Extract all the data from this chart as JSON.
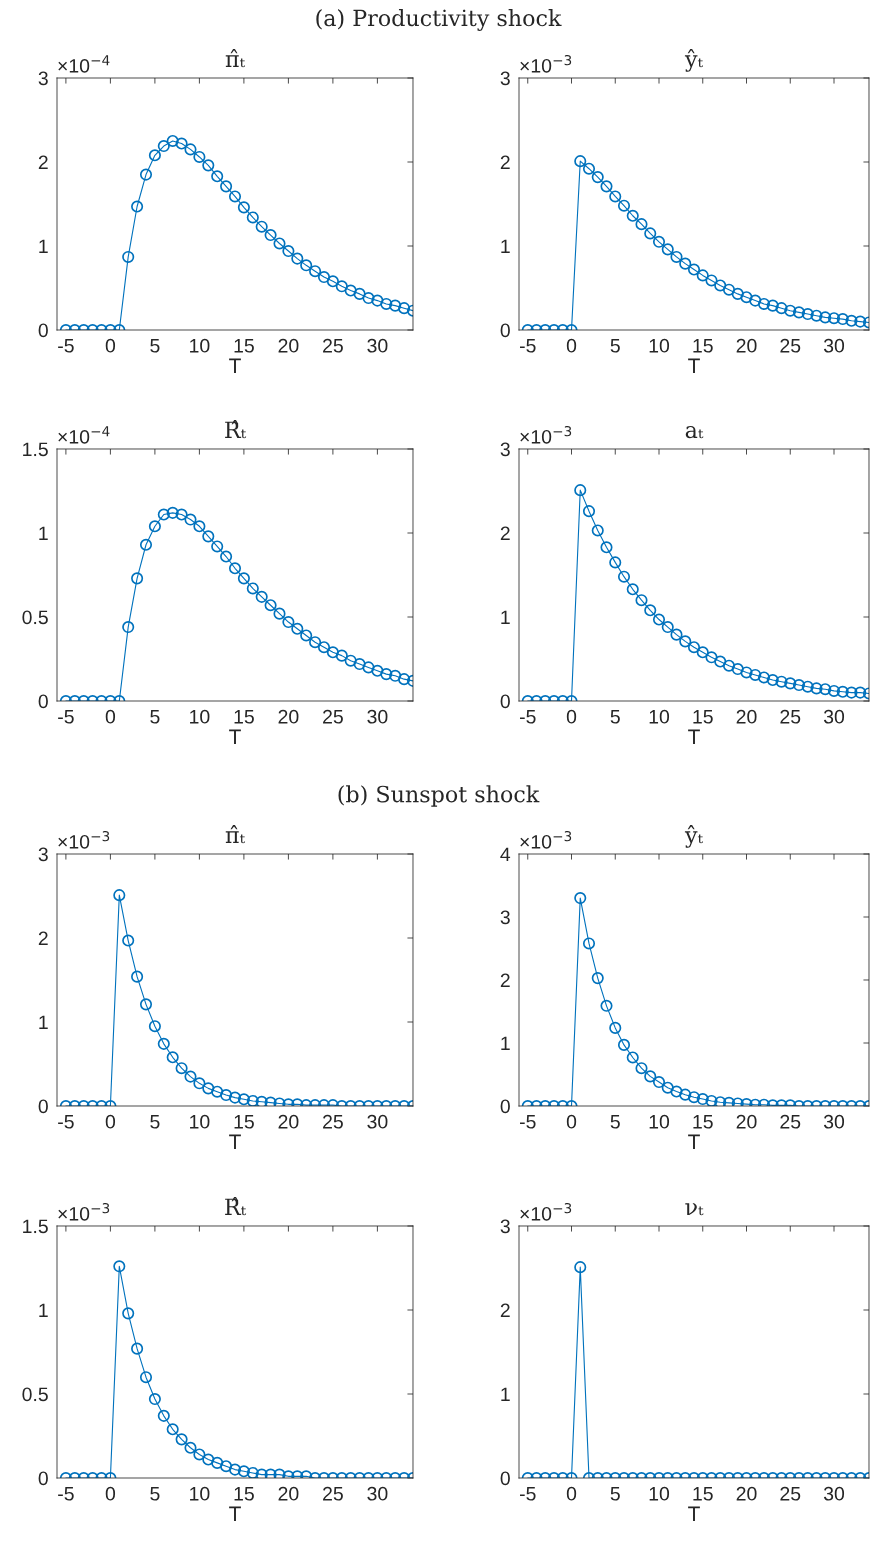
{
  "chart_data": [
    {
      "type": "line",
      "subtitle": "(a) Productivity shock",
      "title": "π̂ₜ",
      "xlabel": "T",
      "color": "#0072bd",
      "marker": "circle",
      "annotations": [
        "×10$^{−4}$"
      ],
      "x": [
        -5,
        -4,
        -3,
        -2,
        -1,
        0,
        1,
        2,
        3,
        4,
        5,
        6,
        7,
        8,
        9,
        10,
        11,
        12,
        13,
        14,
        15,
        16,
        17,
        18,
        19,
        20,
        21,
        22,
        23,
        24,
        25,
        26,
        27,
        28,
        29,
        30,
        31,
        32,
        33,
        34
      ],
      "values": [
        0,
        0,
        0,
        0,
        0,
        0,
        0,
        0.87,
        1.47,
        1.85,
        2.08,
        2.19,
        2.25,
        2.22,
        2.15,
        2.06,
        1.96,
        1.83,
        1.71,
        1.59,
        1.46,
        1.34,
        1.23,
        1.13,
        1.03,
        0.94,
        0.85,
        0.77,
        0.7,
        0.63,
        0.58,
        0.52,
        0.47,
        0.43,
        0.38,
        0.35,
        0.31,
        0.29,
        0.26,
        0.23
      ],
      "xlim": [
        -6,
        34
      ],
      "xticks": [
        -5,
        0,
        5,
        10,
        15,
        20,
        25,
        30
      ],
      "ylim": [
        0,
        3
      ],
      "yticks": [
        0,
        1,
        2,
        3
      ]
    },
    {
      "type": "line",
      "title": "ŷₜ",
      "xlabel": "T",
      "color": "#0072bd",
      "marker": "circle",
      "annotations": [
        "×10$^{−3}$"
      ],
      "x": [
        -5,
        -4,
        -3,
        -2,
        -1,
        0,
        1,
        2,
        3,
        4,
        5,
        6,
        7,
        8,
        9,
        10,
        11,
        12,
        13,
        14,
        15,
        16,
        17,
        18,
        19,
        20,
        21,
        22,
        23,
        24,
        25,
        26,
        27,
        28,
        29,
        30,
        31,
        32,
        33,
        34
      ],
      "values": [
        0,
        0,
        0,
        0,
        0,
        0,
        2.01,
        1.92,
        1.82,
        1.71,
        1.59,
        1.48,
        1.36,
        1.26,
        1.15,
        1.05,
        0.96,
        0.87,
        0.79,
        0.72,
        0.65,
        0.59,
        0.53,
        0.48,
        0.43,
        0.39,
        0.35,
        0.31,
        0.29,
        0.26,
        0.23,
        0.21,
        0.19,
        0.17,
        0.15,
        0.14,
        0.13,
        0.11,
        0.1,
        0.09
      ],
      "xlim": [
        -6,
        34
      ],
      "xticks": [
        -5,
        0,
        5,
        10,
        15,
        20,
        25,
        30
      ],
      "ylim": [
        0,
        3
      ],
      "yticks": [
        0,
        1,
        2,
        3
      ]
    },
    {
      "type": "line",
      "title": "R̂ₜ",
      "xlabel": "T",
      "color": "#0072bd",
      "marker": "circle",
      "annotations": [
        "×10$^{−4}$"
      ],
      "x": [
        -5,
        -4,
        -3,
        -2,
        -1,
        0,
        1,
        2,
        3,
        4,
        5,
        6,
        7,
        8,
        9,
        10,
        11,
        12,
        13,
        14,
        15,
        16,
        17,
        18,
        19,
        20,
        21,
        22,
        23,
        24,
        25,
        26,
        27,
        28,
        29,
        30,
        31,
        32,
        33,
        34
      ],
      "values": [
        0,
        0,
        0,
        0,
        0,
        0,
        0,
        0.44,
        0.73,
        0.93,
        1.04,
        1.11,
        1.12,
        1.11,
        1.08,
        1.04,
        0.98,
        0.92,
        0.86,
        0.79,
        0.73,
        0.67,
        0.62,
        0.57,
        0.52,
        0.47,
        0.43,
        0.39,
        0.35,
        0.32,
        0.29,
        0.27,
        0.24,
        0.22,
        0.2,
        0.18,
        0.16,
        0.15,
        0.13,
        0.12
      ],
      "xlim": [
        -6,
        34
      ],
      "xticks": [
        -5,
        0,
        5,
        10,
        15,
        20,
        25,
        30
      ],
      "ylim": [
        0,
        1.5
      ],
      "yticks": [
        0,
        0.5,
        1,
        1.5
      ]
    },
    {
      "type": "line",
      "title": "aₜ",
      "xlabel": "T",
      "color": "#0072bd",
      "marker": "circle",
      "annotations": [
        "×10$^{−3}$"
      ],
      "x": [
        -5,
        -4,
        -3,
        -2,
        -1,
        0,
        1,
        2,
        3,
        4,
        5,
        6,
        7,
        8,
        9,
        10,
        11,
        12,
        13,
        14,
        15,
        16,
        17,
        18,
        19,
        20,
        21,
        22,
        23,
        24,
        25,
        26,
        27,
        28,
        29,
        30,
        31,
        32,
        33,
        34
      ],
      "values": [
        0,
        0,
        0,
        0,
        0,
        0,
        2.51,
        2.26,
        2.03,
        1.83,
        1.65,
        1.48,
        1.33,
        1.2,
        1.08,
        0.97,
        0.88,
        0.79,
        0.71,
        0.64,
        0.58,
        0.52,
        0.47,
        0.42,
        0.38,
        0.34,
        0.31,
        0.28,
        0.25,
        0.23,
        0.21,
        0.19,
        0.17,
        0.15,
        0.14,
        0.12,
        0.11,
        0.1,
        0.1,
        0.09
      ],
      "xlim": [
        -6,
        34
      ],
      "xticks": [
        -5,
        0,
        5,
        10,
        15,
        20,
        25,
        30
      ],
      "ylim": [
        0,
        3
      ],
      "yticks": [
        0,
        1,
        2,
        3
      ]
    },
    {
      "type": "line",
      "subtitle": "(b) Sunspot shock",
      "title": "π̂ₜ",
      "xlabel": "T",
      "color": "#0072bd",
      "marker": "circle",
      "annotations": [
        "×10$^{−3}$"
      ],
      "x": [
        -5,
        -4,
        -3,
        -2,
        -1,
        0,
        1,
        2,
        3,
        4,
        5,
        6,
        7,
        8,
        9,
        10,
        11,
        12,
        13,
        14,
        15,
        16,
        17,
        18,
        19,
        20,
        21,
        22,
        23,
        24,
        25,
        26,
        27,
        28,
        29,
        30,
        31,
        32,
        33,
        34
      ],
      "values": [
        0,
        0,
        0,
        0,
        0,
        0,
        2.51,
        1.97,
        1.54,
        1.21,
        0.95,
        0.74,
        0.58,
        0.45,
        0.35,
        0.27,
        0.21,
        0.17,
        0.13,
        0.1,
        0.08,
        0.06,
        0.05,
        0.04,
        0.03,
        0.02,
        0.02,
        0.01,
        0.01,
        0.01,
        0.01,
        0,
        0,
        0,
        0,
        0,
        0,
        0,
        0,
        0
      ],
      "xlim": [
        -6,
        34
      ],
      "xticks": [
        -5,
        0,
        5,
        10,
        15,
        20,
        25,
        30
      ],
      "ylim": [
        0,
        3
      ],
      "yticks": [
        0,
        1,
        2,
        3
      ]
    },
    {
      "type": "line",
      "title": "ŷₜ",
      "xlabel": "T",
      "color": "#0072bd",
      "marker": "circle",
      "annotations": [
        "×10$^{−3}$"
      ],
      "x": [
        -5,
        -4,
        -3,
        -2,
        -1,
        0,
        1,
        2,
        3,
        4,
        5,
        6,
        7,
        8,
        9,
        10,
        11,
        12,
        13,
        14,
        15,
        16,
        17,
        18,
        19,
        20,
        21,
        22,
        23,
        24,
        25,
        26,
        27,
        28,
        29,
        30,
        31,
        32,
        33,
        34
      ],
      "values": [
        0,
        0,
        0,
        0,
        0,
        0,
        3.3,
        2.58,
        2.03,
        1.59,
        1.24,
        0.97,
        0.77,
        0.6,
        0.47,
        0.38,
        0.29,
        0.23,
        0.18,
        0.14,
        0.11,
        0.08,
        0.06,
        0.05,
        0.04,
        0.03,
        0.02,
        0.02,
        0.01,
        0.01,
        0.01,
        0,
        0,
        0,
        0,
        0,
        0,
        0,
        0,
        0
      ],
      "xlim": [
        -6,
        34
      ],
      "xticks": [
        -5,
        0,
        5,
        10,
        15,
        20,
        25,
        30
      ],
      "ylim": [
        0,
        4
      ],
      "yticks": [
        0,
        1,
        2,
        3,
        4
      ]
    },
    {
      "type": "line",
      "title": "R̂ₜ",
      "xlabel": "T",
      "color": "#0072bd",
      "marker": "circle",
      "annotations": [
        "×10$^{−3}$"
      ],
      "x": [
        -5,
        -4,
        -3,
        -2,
        -1,
        0,
        1,
        2,
        3,
        4,
        5,
        6,
        7,
        8,
        9,
        10,
        11,
        12,
        13,
        14,
        15,
        16,
        17,
        18,
        19,
        20,
        21,
        22,
        23,
        24,
        25,
        26,
        27,
        28,
        29,
        30,
        31,
        32,
        33,
        34
      ],
      "values": [
        0,
        0,
        0,
        0,
        0,
        0,
        1.26,
        0.98,
        0.77,
        0.6,
        0.47,
        0.37,
        0.29,
        0.23,
        0.18,
        0.14,
        0.11,
        0.09,
        0.07,
        0.05,
        0.04,
        0.03,
        0.02,
        0.02,
        0.02,
        0.01,
        0.01,
        0.01,
        0,
        0,
        0,
        0,
        0,
        0,
        0,
        0,
        0,
        0,
        0,
        0
      ],
      "xlim": [
        -6,
        34
      ],
      "xticks": [
        -5,
        0,
        5,
        10,
        15,
        20,
        25,
        30
      ],
      "ylim": [
        0,
        1.5
      ],
      "yticks": [
        0,
        0.5,
        1,
        1.5
      ]
    },
    {
      "type": "line",
      "title": "νₜ",
      "xlabel": "T",
      "color": "#0072bd",
      "marker": "circle",
      "annotations": [
        "×10$^{−3}$"
      ],
      "x": [
        -5,
        -4,
        -3,
        -2,
        -1,
        0,
        1,
        2,
        3,
        4,
        5,
        6,
        7,
        8,
        9,
        10,
        11,
        12,
        13,
        14,
        15,
        16,
        17,
        18,
        19,
        20,
        21,
        22,
        23,
        24,
        25,
        26,
        27,
        28,
        29,
        30,
        31,
        32,
        33,
        34
      ],
      "values": [
        0,
        0,
        0,
        0,
        0,
        0,
        2.51,
        0,
        0,
        0,
        0,
        0,
        0,
        0,
        0,
        0,
        0,
        0,
        0,
        0,
        0,
        0,
        0,
        0,
        0,
        0,
        0,
        0,
        0,
        0,
        0,
        0,
        0,
        0,
        0,
        0,
        0,
        0,
        0,
        0
      ],
      "xlim": [
        -6,
        34
      ],
      "xticks": [
        -5,
        0,
        5,
        10,
        15,
        20,
        25,
        30
      ],
      "ylim": [
        0,
        3
      ],
      "yticks": [
        0,
        1,
        2,
        3
      ]
    }
  ]
}
